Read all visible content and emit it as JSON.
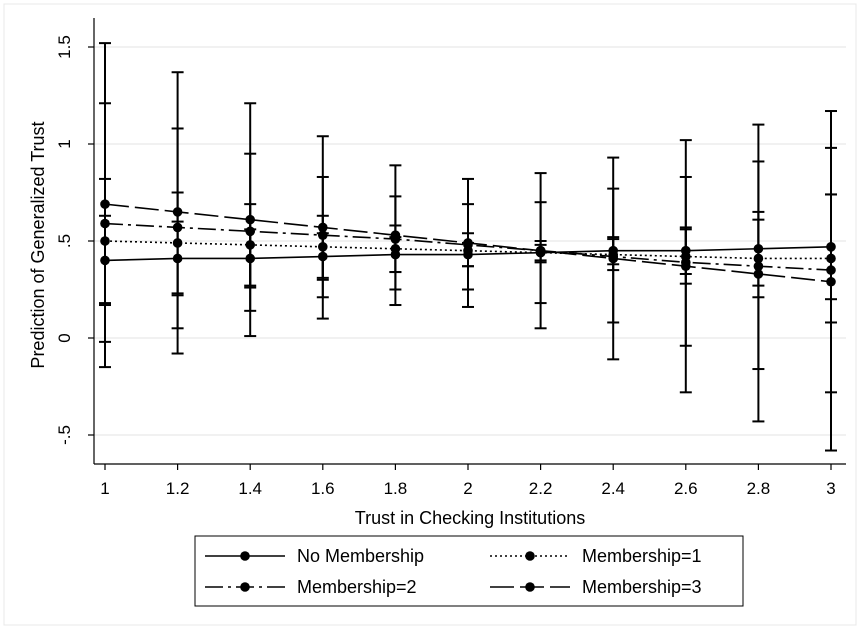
{
  "chart_data": {
    "type": "line",
    "title": "",
    "xlabel": "Trust in Checking Institutions",
    "ylabel": "Prediction of Generalized Trust",
    "xlim": [
      1,
      3
    ],
    "ylim": [
      -0.5,
      1.5
    ],
    "x": [
      1,
      1.2,
      1.4,
      1.6,
      1.8,
      2,
      2.2,
      2.4,
      2.6,
      2.8,
      3
    ],
    "x_tick_labels": [
      "1",
      "1.2",
      "1.4",
      "1.6",
      "1.8",
      "2",
      "2.2",
      "2.4",
      "2.6",
      "2.8",
      "3"
    ],
    "y_ticks": [
      -0.5,
      0,
      0.5,
      1,
      1.5
    ],
    "y_tick_labels": [
      "-.5",
      "0",
      ".5",
      "1",
      "1.5"
    ],
    "grid": true,
    "legend_position": "bottom",
    "series": [
      {
        "name": "No Membership",
        "style": "solid",
        "values": [
          0.4,
          0.41,
          0.41,
          0.42,
          0.43,
          0.43,
          0.44,
          0.45,
          0.45,
          0.46,
          0.47
        ],
        "ci_lower": [
          0.17,
          0.22,
          0.26,
          0.3,
          0.34,
          0.37,
          0.4,
          0.38,
          0.33,
          0.27,
          0.2
        ],
        "ci_upper": [
          0.63,
          0.6,
          0.56,
          0.54,
          0.52,
          0.49,
          0.48,
          0.52,
          0.57,
          0.65,
          0.74
        ]
      },
      {
        "name": "Membership=1",
        "style": "dotted",
        "values": [
          0.5,
          0.49,
          0.48,
          0.47,
          0.46,
          0.45,
          0.44,
          0.43,
          0.42,
          0.41,
          0.41
        ],
        "ci_lower": [
          0.18,
          0.23,
          0.27,
          0.31,
          0.34,
          0.37,
          0.39,
          0.35,
          0.28,
          0.21,
          0.08
        ],
        "ci_upper": [
          0.82,
          0.75,
          0.69,
          0.63,
          0.58,
          0.54,
          0.5,
          0.51,
          0.56,
          0.61,
          0.74
        ]
      },
      {
        "name": "Membership=2",
        "style": "dashdot",
        "values": [
          0.59,
          0.57,
          0.55,
          0.53,
          0.51,
          0.48,
          0.45,
          0.42,
          0.39,
          0.37,
          0.35
        ],
        "ci_lower": [
          -0.02,
          0.05,
          0.14,
          0.21,
          0.25,
          0.25,
          0.18,
          0.08,
          -0.04,
          -0.16,
          -0.28
        ],
        "ci_upper": [
          1.21,
          1.08,
          0.95,
          0.83,
          0.73,
          0.69,
          0.7,
          0.77,
          0.83,
          0.91,
          0.98
        ]
      },
      {
        "name": "Membership=3",
        "style": "longdash",
        "values": [
          0.69,
          0.65,
          0.61,
          0.57,
          0.53,
          0.49,
          0.45,
          0.41,
          0.37,
          0.33,
          0.29
        ],
        "ci_lower": [
          -0.15,
          -0.08,
          0.01,
          0.1,
          0.17,
          0.16,
          0.05,
          -0.11,
          -0.28,
          -0.43,
          -0.58
        ],
        "ci_upper": [
          1.52,
          1.37,
          1.21,
          1.04,
          0.89,
          0.82,
          0.85,
          0.93,
          1.02,
          1.1,
          1.17
        ]
      }
    ]
  }
}
